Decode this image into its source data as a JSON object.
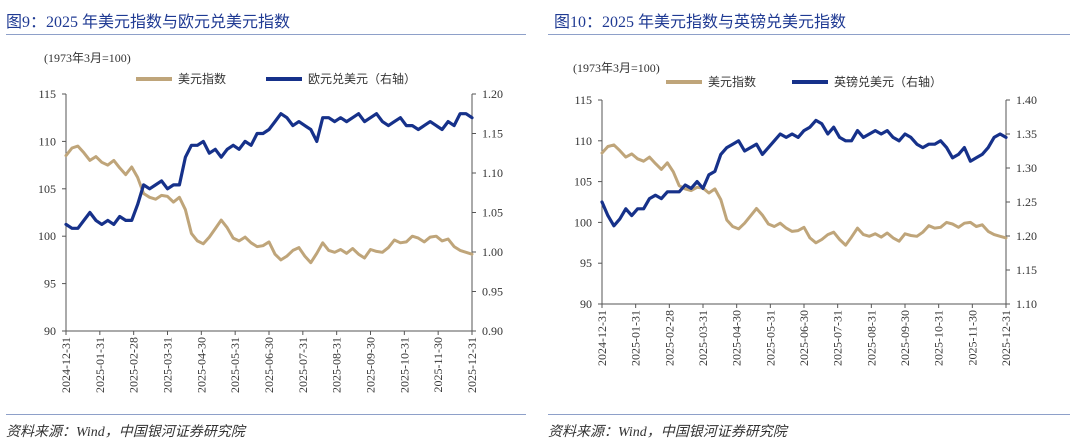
{
  "chart_data": [
    {
      "type": "line",
      "title": "图9：2025 年美元指数与欧元兑美元指数",
      "unit_note": "(1973年3月=100)",
      "source": "资料来源：Wind，中国银河证券研究院",
      "x_tick_labels": [
        "2024-12-31",
        "2025-01-31",
        "2025-02-28",
        "2025-03-31",
        "2025-04-30",
        "2025-05-31",
        "2025-06-30",
        "2025-07-31",
        "2025-08-31",
        "2025-09-30",
        "2025-10-31",
        "2025-11-30",
        "2025-12-31"
      ],
      "y_left": {
        "ticks": [
          90,
          95,
          100,
          105,
          110,
          115
        ],
        "ylim": [
          90,
          115
        ]
      },
      "y_right": {
        "ticks": [
          "0.90",
          "0.95",
          "1.00",
          "1.05",
          "1.10",
          "1.15",
          "1.20"
        ],
        "ylim": [
          0.9,
          1.2
        ]
      },
      "series": [
        {
          "name": "美元指数",
          "axis": "left",
          "color": "#bfa57a",
          "values": [
            108.5,
            109.3,
            109.5,
            108.8,
            108.0,
            108.4,
            107.8,
            107.5,
            108.0,
            107.2,
            106.5,
            107.3,
            106.2,
            104.5,
            104.1,
            103.9,
            104.3,
            104.2,
            103.6,
            104.1,
            102.8,
            100.3,
            99.5,
            99.2,
            99.9,
            100.8,
            101.7,
            100.9,
            99.8,
            99.5,
            99.9,
            99.3,
            98.9,
            99.0,
            99.4,
            98.1,
            97.5,
            97.9,
            98.5,
            98.8,
            97.9,
            97.2,
            98.2,
            99.3,
            98.5,
            98.3,
            98.6,
            98.2,
            98.7,
            98.1,
            97.7,
            98.6,
            98.4,
            98.3,
            98.8,
            99.6,
            99.3,
            99.4,
            100.0,
            99.8,
            99.4,
            99.9,
            100.0,
            99.5,
            99.7,
            98.9,
            98.5,
            98.3,
            98.1
          ]
        },
        {
          "name": "欧元兑美元（右轴）",
          "axis": "right",
          "color": "#16318a",
          "values": [
            1.035,
            1.03,
            1.03,
            1.04,
            1.05,
            1.04,
            1.035,
            1.04,
            1.035,
            1.045,
            1.04,
            1.04,
            1.06,
            1.085,
            1.08,
            1.085,
            1.09,
            1.08,
            1.085,
            1.085,
            1.12,
            1.135,
            1.135,
            1.14,
            1.125,
            1.13,
            1.12,
            1.13,
            1.135,
            1.13,
            1.14,
            1.135,
            1.15,
            1.15,
            1.155,
            1.165,
            1.175,
            1.17,
            1.16,
            1.165,
            1.16,
            1.155,
            1.14,
            1.17,
            1.17,
            1.165,
            1.17,
            1.165,
            1.17,
            1.175,
            1.165,
            1.17,
            1.175,
            1.165,
            1.16,
            1.165,
            1.17,
            1.16,
            1.16,
            1.155,
            1.16,
            1.165,
            1.16,
            1.155,
            1.165,
            1.16,
            1.175,
            1.175,
            1.17
          ]
        }
      ]
    },
    {
      "type": "line",
      "title": "图10：2025 年美元指数与英镑兑美元指数",
      "unit_note": "(1973年3月=100)",
      "source": "资料来源：Wind，中国银河证券研究院",
      "x_tick_labels": [
        "2024-12-31",
        "2025-01-31",
        "2025-02-28",
        "2025-03-31",
        "2025-04-30",
        "2025-05-31",
        "2025-06-30",
        "2025-07-31",
        "2025-08-31",
        "2025-09-30",
        "2025-10-31",
        "2025-11-30",
        "2025-12-31"
      ],
      "y_left": {
        "ticks": [
          90,
          95,
          100,
          105,
          110,
          115
        ],
        "ylim": [
          90,
          115
        ]
      },
      "y_right": {
        "ticks": [
          "1.10",
          "1.15",
          "1.20",
          "1.25",
          "1.30",
          "1.35",
          "1.40"
        ],
        "ylim": [
          1.1,
          1.4
        ]
      },
      "series": [
        {
          "name": "美元指数",
          "axis": "left",
          "color": "#bfa57a",
          "values": [
            108.5,
            109.3,
            109.5,
            108.8,
            108.0,
            108.4,
            107.8,
            107.5,
            108.0,
            107.2,
            106.5,
            107.3,
            106.2,
            104.5,
            104.1,
            103.9,
            104.3,
            104.2,
            103.6,
            104.1,
            102.8,
            100.3,
            99.5,
            99.2,
            99.9,
            100.8,
            101.7,
            100.9,
            99.8,
            99.5,
            99.9,
            99.3,
            98.9,
            99.0,
            99.4,
            98.1,
            97.5,
            97.9,
            98.5,
            98.8,
            97.9,
            97.2,
            98.2,
            99.3,
            98.5,
            98.3,
            98.6,
            98.2,
            98.7,
            98.1,
            97.7,
            98.6,
            98.4,
            98.3,
            98.8,
            99.6,
            99.3,
            99.4,
            100.0,
            99.8,
            99.4,
            99.9,
            100.0,
            99.5,
            99.7,
            98.9,
            98.5,
            98.3,
            98.1
          ]
        },
        {
          "name": "英镑兑美元（右轴）",
          "axis": "right",
          "color": "#16318a",
          "values": [
            1.25,
            1.23,
            1.215,
            1.225,
            1.24,
            1.23,
            1.24,
            1.24,
            1.255,
            1.26,
            1.255,
            1.265,
            1.265,
            1.265,
            1.275,
            1.27,
            1.28,
            1.27,
            1.29,
            1.295,
            1.32,
            1.33,
            1.335,
            1.34,
            1.325,
            1.33,
            1.335,
            1.32,
            1.33,
            1.34,
            1.35,
            1.345,
            1.35,
            1.345,
            1.355,
            1.36,
            1.37,
            1.365,
            1.35,
            1.36,
            1.345,
            1.34,
            1.34,
            1.355,
            1.345,
            1.35,
            1.355,
            1.35,
            1.355,
            1.345,
            1.34,
            1.35,
            1.345,
            1.335,
            1.33,
            1.335,
            1.335,
            1.34,
            1.33,
            1.315,
            1.32,
            1.33,
            1.31,
            1.315,
            1.32,
            1.33,
            1.345,
            1.35,
            1.345
          ]
        }
      ]
    }
  ]
}
